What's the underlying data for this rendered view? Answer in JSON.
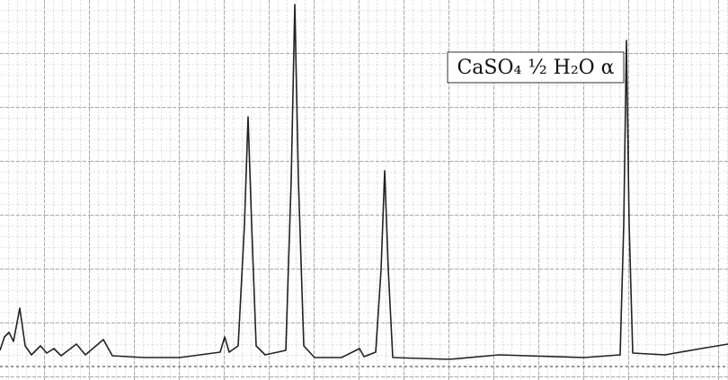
{
  "chart_data": {
    "type": "line",
    "title": "CaSO₄ ½ H₂O α",
    "xlim": [
      0,
      81
    ],
    "ylim": [
      0,
      100
    ],
    "color": "#222222",
    "grid": true,
    "x": [
      0,
      0.5,
      1,
      1.5,
      2.2,
      2.8,
      3.5,
      4.5,
      5.2,
      6,
      6.8,
      8.5,
      9.5,
      11.5,
      12.5,
      16,
      20,
      24.5,
      25,
      25.5,
      26.5,
      27.2,
      27.6,
      28,
      28.5,
      29.5,
      31.8,
      32.4,
      32.8,
      33.2,
      33.8,
      35,
      38,
      40,
      40.5,
      41.8,
      42.4,
      42.8,
      43.2,
      43.7,
      50,
      55.5,
      65,
      69,
      69.4,
      69.7,
      70,
      70.4,
      74,
      78,
      81
    ],
    "values": [
      2.5,
      6.25,
      7.5,
      5,
      14.25,
      3.75,
      1.25,
      3.75,
      1.75,
      3,
      1,
      4.25,
      1.25,
      5.5,
      1,
      0.5,
      0.5,
      2,
      6.25,
      2,
      3.75,
      37.5,
      67.5,
      37.5,
      3.75,
      1.25,
      2.5,
      50,
      98.75,
      50,
      3.75,
      0.5,
      0.5,
      3,
      0.75,
      2,
      25,
      52.5,
      25,
      0.5,
      0,
      1.25,
      0.5,
      1.25,
      37.5,
      88.75,
      37.5,
      1.75,
      1.25,
      3,
      4.25
    ]
  }
}
